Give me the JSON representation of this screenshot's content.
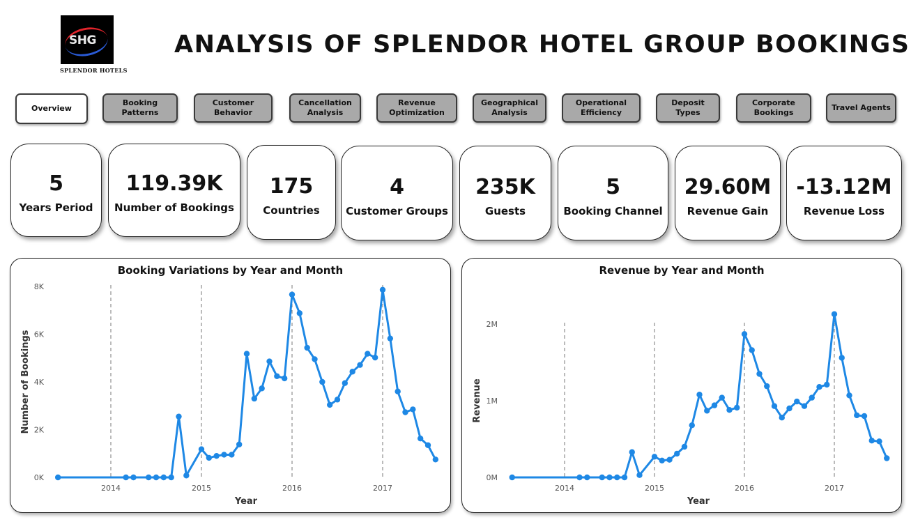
{
  "logo": {
    "mark": "SHG",
    "caption": "SPLENDOR HOTELS"
  },
  "title": "ANALYSIS OF SPLENDOR HOTEL GROUP BOOKINGS",
  "tabs": [
    {
      "label": "Overview",
      "active": true
    },
    {
      "label": "Booking\nPatterns"
    },
    {
      "label": "Customer\nBehavior"
    },
    {
      "label": "Cancellation\nAnalysis"
    },
    {
      "label": "Revenue\nOptimization"
    },
    {
      "label": "Geographical\nAnalysis"
    },
    {
      "label": "Operational\nEfficiency"
    },
    {
      "label": "Deposit\nTypes"
    },
    {
      "label": "Corporate\nBookings"
    },
    {
      "label": "Travel Agents"
    }
  ],
  "kpis": [
    {
      "value": "5",
      "label": "Years Period"
    },
    {
      "value": "119.39K",
      "label": "Number of Bookings"
    },
    {
      "value": "175",
      "label": "Countries"
    },
    {
      "value": "4",
      "label": "Customer Groups"
    },
    {
      "value": "235K",
      "label": "Guests"
    },
    {
      "value": "5",
      "label": "Booking Channel"
    },
    {
      "value": "29.60M",
      "label": "Revenue Gain"
    },
    {
      "value": "-13.12M",
      "label": "Revenue Loss"
    }
  ],
  "colors": {
    "series": "#1e88e5",
    "tab_inactive": "#a9a9a9"
  },
  "chart_data": [
    {
      "type": "line",
      "title": "Booking Variations by Year and Month",
      "xlabel": "Year",
      "ylabel": "Number of Bookings",
      "yticks": [
        "0K",
        "2K",
        "4K",
        "6K",
        "8K"
      ],
      "ylim": [
        0,
        8000
      ],
      "xticks": [
        "2014",
        "2015",
        "2016",
        "2017"
      ],
      "year_markers": [
        2014,
        2015,
        2016,
        2017
      ],
      "grid": false,
      "series": [
        {
          "x": [
            2013.4167,
            2014.1667,
            2014.25,
            2014.4167,
            2014.5,
            2014.5833,
            2014.6667,
            2014.75,
            2014.8333,
            2015.0,
            2015.0833,
            2015.1667,
            2015.25,
            2015.3333,
            2015.4167,
            2015.5,
            2015.5833,
            2015.6667,
            2015.75,
            2015.8333,
            2015.9167,
            2016.0,
            2016.0833,
            2016.1667,
            2016.25,
            2016.3333,
            2016.4167,
            2016.5,
            2016.5833,
            2016.6667,
            2016.75,
            2016.8333,
            2016.9167,
            2017.0,
            2017.0833,
            2017.1667,
            2017.25,
            2017.3333,
            2017.4167,
            2017.5,
            2017.5833
          ],
          "values": [
            0,
            0,
            0,
            0,
            0,
            0,
            0,
            2550,
            80,
            1180,
            820,
            900,
            950,
            950,
            1380,
            5180,
            3300,
            3730,
            4860,
            4240,
            4150,
            7660,
            6880,
            5430,
            4950,
            4000,
            3040,
            3260,
            3950,
            4430,
            4710,
            5180,
            5020,
            7860,
            5820,
            3600,
            2730,
            2850,
            1630,
            1350,
            750
          ]
        }
      ]
    },
    {
      "type": "line",
      "title": "Revenue by Year and Month",
      "xlabel": "Year",
      "ylabel": "Revenue",
      "yticks": [
        "0M",
        "1M",
        "2M"
      ],
      "ylim": [
        0,
        2000000
      ],
      "xticks": [
        "2014",
        "2015",
        "2016",
        "2017"
      ],
      "year_markers": [
        2014,
        2015,
        2016,
        2017
      ],
      "grid": false,
      "series": [
        {
          "x": [
            2013.4167,
            2014.1667,
            2014.25,
            2014.4167,
            2014.5,
            2014.5833,
            2014.6667,
            2014.75,
            2014.8333,
            2015.0,
            2015.0833,
            2015.1667,
            2015.25,
            2015.3333,
            2015.4167,
            2015.5,
            2015.5833,
            2015.6667,
            2015.75,
            2015.8333,
            2015.9167,
            2016.0,
            2016.0833,
            2016.1667,
            2016.25,
            2016.3333,
            2016.4167,
            2016.5,
            2016.5833,
            2016.6667,
            2016.75,
            2016.8333,
            2016.9167,
            2017.0,
            2017.0833,
            2017.1667,
            2017.25,
            2017.3333,
            2017.4167,
            2017.5,
            2017.5833
          ],
          "values": [
            0,
            0,
            0,
            0,
            0,
            0,
            0,
            330000,
            30000,
            270000,
            220000,
            230000,
            310000,
            400000,
            680000,
            1080000,
            870000,
            940000,
            1040000,
            880000,
            910000,
            1870000,
            1660000,
            1350000,
            1190000,
            930000,
            780000,
            900000,
            990000,
            930000,
            1040000,
            1180000,
            1210000,
            2130000,
            1560000,
            1070000,
            810000,
            800000,
            480000,
            470000,
            250000
          ]
        }
      ]
    }
  ]
}
